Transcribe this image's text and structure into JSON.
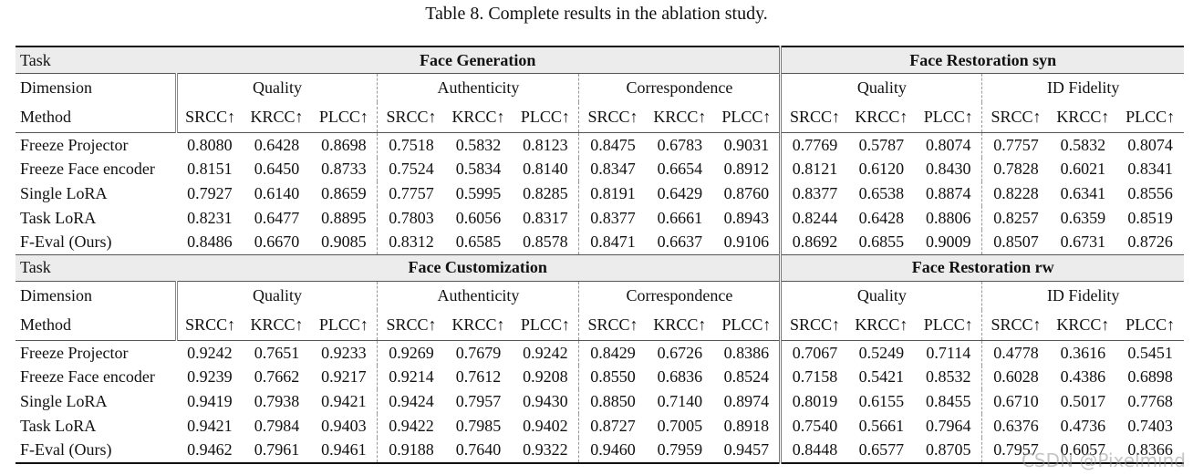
{
  "caption": "Table 8. Complete results in the ablation study.",
  "blocks": [
    {
      "task_label": "Task",
      "tasks": [
        "Face Generation",
        "Face Restoration syn"
      ],
      "dimension_label": "Dimension",
      "dimensions": [
        "Quality",
        "Authenticity",
        "Correspondence",
        "Quality",
        "ID Fidelity"
      ],
      "method_label": "Method",
      "metrics": [
        "SRCC↑",
        "KRCC↑",
        "PLCC↑",
        "SRCC↑",
        "KRCC↑",
        "PLCC↑",
        "SRCC↑",
        "KRCC↑",
        "PLCC↑",
        "SRCC↑",
        "KRCC↑",
        "PLCC↑",
        "SRCC↑",
        "KRCC↑",
        "PLCC↑"
      ],
      "rows": [
        {
          "method": "Freeze Projector",
          "values": [
            "0.8080",
            "0.6428",
            "0.8698",
            "0.7518",
            "0.5832",
            "0.8123",
            "0.8475",
            "0.6783",
            "0.9031",
            "0.7769",
            "0.5787",
            "0.8074",
            "0.7757",
            "0.5832",
            "0.8074"
          ]
        },
        {
          "method": "Freeze Face encoder",
          "values": [
            "0.8151",
            "0.6450",
            "0.8733",
            "0.7524",
            "0.5834",
            "0.8140",
            "0.8347",
            "0.6654",
            "0.8912",
            "0.8121",
            "0.6120",
            "0.8430",
            "0.7828",
            "0.6021",
            "0.8341"
          ]
        },
        {
          "method": "Single LoRA",
          "values": [
            "0.7927",
            "0.6140",
            "0.8659",
            "0.7757",
            "0.5995",
            "0.8285",
            "0.8191",
            "0.6429",
            "0.8760",
            "0.8377",
            "0.6538",
            "0.8874",
            "0.8228",
            "0.6341",
            "0.8556"
          ]
        },
        {
          "method": "Task LoRA",
          "values": [
            "0.8231",
            "0.6477",
            "0.8895",
            "0.7803",
            "0.6056",
            "0.8317",
            "0.8377",
            "0.6661",
            "0.8943",
            "0.8244",
            "0.6428",
            "0.8806",
            "0.8257",
            "0.6359",
            "0.8519"
          ]
        },
        {
          "method": "F-Eval (Ours)",
          "values": [
            "0.8486",
            "0.6670",
            "0.9085",
            "0.8312",
            "0.6585",
            "0.8578",
            "0.8471",
            "0.6637",
            "0.9106",
            "0.8692",
            "0.6855",
            "0.9009",
            "0.8507",
            "0.6731",
            "0.8726"
          ]
        }
      ]
    },
    {
      "task_label": "Task",
      "tasks": [
        "Face Customization",
        "Face Restoration rw"
      ],
      "dimension_label": "Dimension",
      "dimensions": [
        "Quality",
        "Authenticity",
        "Correspondence",
        "Quality",
        "ID Fidelity"
      ],
      "method_label": "Method",
      "metrics": [
        "SRCC↑",
        "KRCC↑",
        "PLCC↑",
        "SRCC↑",
        "KRCC↑",
        "PLCC↑",
        "SRCC↑",
        "KRCC↑",
        "PLCC↑",
        "SRCC↑",
        "KRCC↑",
        "PLCC↑",
        "SRCC↑",
        "KRCC↑",
        "PLCC↑"
      ],
      "rows": [
        {
          "method": "Freeze Projector",
          "values": [
            "0.9242",
            "0.7651",
            "0.9233",
            "0.9269",
            "0.7679",
            "0.9242",
            "0.8429",
            "0.6726",
            "0.8386",
            "0.7067",
            "0.5249",
            "0.7114",
            "0.4778",
            "0.3616",
            "0.5451"
          ]
        },
        {
          "method": "Freeze Face encoder",
          "values": [
            "0.9239",
            "0.7662",
            "0.9217",
            "0.9214",
            "0.7612",
            "0.9208",
            "0.8550",
            "0.6836",
            "0.8524",
            "0.7158",
            "0.5421",
            "0.8532",
            "0.6028",
            "0.4386",
            "0.6898"
          ]
        },
        {
          "method": "Single LoRA",
          "values": [
            "0.9419",
            "0.7938",
            "0.9421",
            "0.9424",
            "0.7957",
            "0.9430",
            "0.8850",
            "0.7140",
            "0.8974",
            "0.8019",
            "0.6155",
            "0.8455",
            "0.6710",
            "0.5017",
            "0.7768"
          ]
        },
        {
          "method": "Task LoRA",
          "values": [
            "0.9421",
            "0.7984",
            "0.9403",
            "0.9422",
            "0.7985",
            "0.9402",
            "0.8727",
            "0.7005",
            "0.8918",
            "0.7540",
            "0.5661",
            "0.7964",
            "0.6376",
            "0.4736",
            "0.7403"
          ]
        },
        {
          "method": "F-Eval (Ours)",
          "values": [
            "0.9462",
            "0.7961",
            "0.9461",
            "0.9188",
            "0.7640",
            "0.9322",
            "0.9460",
            "0.7959",
            "0.9457",
            "0.8448",
            "0.6577",
            "0.8705",
            "0.7957",
            "0.6057",
            "0.8366"
          ]
        }
      ]
    }
  ],
  "watermark": "CSDN @Pixelmind"
}
